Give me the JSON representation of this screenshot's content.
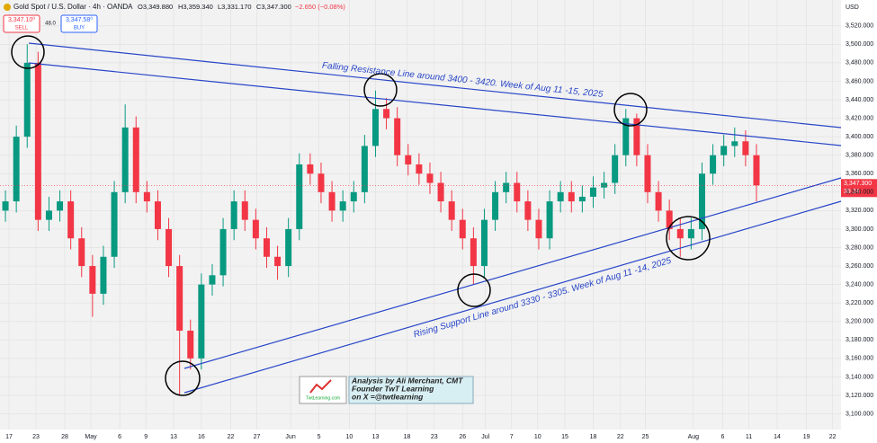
{
  "header": {
    "symbol": "Gold Spot / U.S. Dollar · 4h · OANDA",
    "open": "O3,349.880",
    "high": "H3,359.340",
    "low": "L3,331.170",
    "close": "C3,347.300",
    "change": "−2.650 (−0.08%)",
    "sell_price": "3,347.10⁰",
    "sell": "SELL",
    "spread": "48.0",
    "buy_price": "3,347.58⁰",
    "buy": "BUY",
    "currency": "USD",
    "last_price": "3,347.300",
    "countdown": "39:24"
  },
  "annotations": {
    "resistance": "Falling Resistance Line around 3400 - 3420. Week of Aug 11 -15, 2025",
    "support": "Rising Support Line around 3330 - 3305. Week of Aug 11 -14, 2025",
    "credit": [
      "Analysis by Ali Merchant, CMT",
      "Founder TwT Learning",
      "on X =@twtlearning"
    ],
    "logo": "TwtLearning.com"
  },
  "chart_data": {
    "type": "candlestick",
    "up_color": "#089981",
    "down_color": "#f23645",
    "grid": true,
    "open": [
      3320,
      3330,
      3400,
      3480,
      3310,
      3320,
      3330,
      3290,
      3260,
      3230,
      3270,
      3340,
      3410,
      3340,
      3330,
      3300,
      3260,
      3190,
      3160,
      3240,
      3250,
      3300,
      3330,
      3310,
      3290,
      3270,
      3260,
      3300,
      3370,
      3360,
      3340,
      3320,
      3330,
      3340,
      3390,
      3430,
      3420,
      3380,
      3370,
      3360,
      3350,
      3330,
      3310,
      3290,
      3260,
      3310,
      3340,
      3350,
      3330,
      3310,
      3290,
      3330,
      3340,
      3330,
      3335,
      3345,
      3350,
      3380,
      3420,
      3380,
      3340,
      3320,
      3300,
      3290,
      3300,
      3360,
      3380,
      3390,
      3395,
      3380
    ],
    "high": [
      3342,
      3412,
      3500,
      3492,
      3335,
      3342,
      3342,
      3302,
      3272,
      3282,
      3352,
      3435,
      3422,
      3352,
      3342,
      3312,
      3272,
      3202,
      3252,
      3262,
      3312,
      3342,
      3342,
      3322,
      3302,
      3282,
      3312,
      3382,
      3382,
      3372,
      3352,
      3342,
      3352,
      3402,
      3450,
      3442,
      3432,
      3392,
      3382,
      3372,
      3362,
      3342,
      3322,
      3302,
      3322,
      3352,
      3362,
      3362,
      3342,
      3322,
      3342,
      3352,
      3352,
      3347,
      3357,
      3362,
      3392,
      3430,
      3425,
      3392,
      3352,
      3332,
      3312,
      3312,
      3372,
      3392,
      3402,
      3410,
      3407,
      3392
    ],
    "low": [
      3308,
      3318,
      3388,
      3298,
      3298,
      3308,
      3278,
      3248,
      3205,
      3218,
      3258,
      3328,
      3328,
      3318,
      3288,
      3248,
      3120,
      3148,
      3148,
      3228,
      3238,
      3288,
      3298,
      3278,
      3258,
      3245,
      3248,
      3288,
      3348,
      3328,
      3308,
      3308,
      3318,
      3328,
      3378,
      3408,
      3368,
      3358,
      3348,
      3338,
      3318,
      3298,
      3278,
      3240,
      3248,
      3298,
      3328,
      3318,
      3298,
      3278,
      3278,
      3318,
      3318,
      3318,
      3323,
      3333,
      3338,
      3368,
      3368,
      3328,
      3308,
      3288,
      3270,
      3278,
      3288,
      3348,
      3368,
      3378,
      3368,
      3330
    ],
    "close": [
      3330,
      3400,
      3480,
      3310,
      3320,
      3330,
      3290,
      3260,
      3230,
      3270,
      3340,
      3410,
      3340,
      3330,
      3300,
      3260,
      3190,
      3160,
      3240,
      3250,
      3300,
      3330,
      3310,
      3290,
      3270,
      3260,
      3300,
      3370,
      3360,
      3340,
      3320,
      3330,
      3340,
      3390,
      3430,
      3420,
      3380,
      3370,
      3360,
      3350,
      3330,
      3310,
      3290,
      3260,
      3310,
      3340,
      3350,
      3330,
      3310,
      3290,
      3330,
      3340,
      3330,
      3335,
      3345,
      3350,
      3380,
      3420,
      3380,
      3340,
      3320,
      3300,
      3290,
      3300,
      3360,
      3380,
      3390,
      3395,
      3380,
      3347.3
    ],
    "xlim": [
      -0.5,
      76.77
    ],
    "xticks": [
      {
        "value": 0.33,
        "label": "17"
      },
      {
        "value": 2.81,
        "label": "23"
      },
      {
        "value": 5.45,
        "label": "28"
      },
      {
        "value": 7.85,
        "label": "May"
      },
      {
        "value": 10.5,
        "label": "6"
      },
      {
        "value": 12.9,
        "label": "9"
      },
      {
        "value": 15.45,
        "label": "13"
      },
      {
        "value": 18.0,
        "label": "16"
      },
      {
        "value": 20.7,
        "label": "22"
      },
      {
        "value": 23.1,
        "label": "27"
      },
      {
        "value": 26.2,
        "label": "Jun"
      },
      {
        "value": 28.8,
        "label": "5"
      },
      {
        "value": 31.6,
        "label": "10"
      },
      {
        "value": 34.0,
        "label": "13"
      },
      {
        "value": 36.9,
        "label": "18"
      },
      {
        "value": 39.4,
        "label": "23"
      },
      {
        "value": 42.0,
        "label": "26"
      },
      {
        "value": 44.1,
        "label": "Jul"
      },
      {
        "value": 46.5,
        "label": "7"
      },
      {
        "value": 48.9,
        "label": "10"
      },
      {
        "value": 51.4,
        "label": "15"
      },
      {
        "value": 54.0,
        "label": "18"
      },
      {
        "value": 56.5,
        "label": "22"
      },
      {
        "value": 58.8,
        "label": "25"
      },
      {
        "value": 63.2,
        "label": "Aug"
      },
      {
        "value": 65.9,
        "label": "6"
      },
      {
        "value": 68.3,
        "label": "11"
      },
      {
        "value": 70.9,
        "label": "14"
      },
      {
        "value": 73.6,
        "label": "19"
      },
      {
        "value": 76.0,
        "label": "22"
      }
    ],
    "ylim": [
      3083,
      3548
    ],
    "yticks": [
      {
        "value": 3100,
        "label": "3,100.000"
      },
      {
        "value": 3120,
        "label": "3,120.000"
      },
      {
        "value": 3140,
        "label": "3,140.000"
      },
      {
        "value": 3160,
        "label": "3,160.000"
      },
      {
        "value": 3180,
        "label": "3,180.000"
      },
      {
        "value": 3200,
        "label": "3,200.000"
      },
      {
        "value": 3220,
        "label": "3,220.000"
      },
      {
        "value": 3240,
        "label": "3,240.000"
      },
      {
        "value": 3260,
        "label": "3,260.000"
      },
      {
        "value": 3280,
        "label": "3,280.000"
      },
      {
        "value": 3300,
        "label": "3,300.000"
      },
      {
        "value": 3320,
        "label": "3,320.000"
      },
      {
        "value": 3340,
        "label": "3,340.000"
      },
      {
        "value": 3360,
        "label": "3,360.000"
      },
      {
        "value": 3380,
        "label": "3,380.000"
      },
      {
        "value": 3400,
        "label": "3,400.000"
      },
      {
        "value": 3420,
        "label": "3,420.000"
      },
      {
        "value": 3440,
        "label": "3,440.000"
      },
      {
        "value": 3460,
        "label": "3,460.000"
      },
      {
        "value": 3480,
        "label": "3,480.000"
      },
      {
        "value": 3500,
        "label": "3,500.000"
      },
      {
        "value": 3520,
        "label": "3,520.000"
      }
    ]
  }
}
